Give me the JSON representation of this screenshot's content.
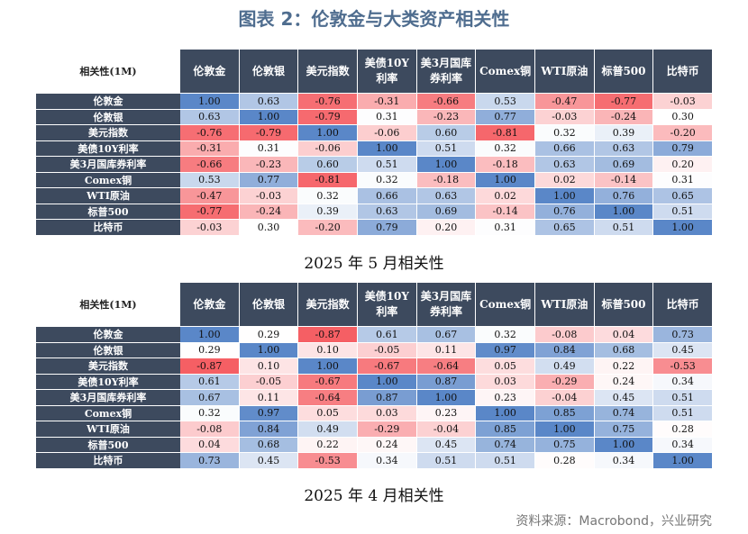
{
  "title": "图表 2：伦敦金与大类资产相关性",
  "tables": [
    {
      "corner": "相关性(1M)",
      "columns": [
        "伦敦金",
        "伦敦银",
        "美元指数",
        "美债10Y利率",
        "美3月国库券利率",
        "Comex铜",
        "WTI原油",
        "标普500",
        "比特币"
      ],
      "rows": [
        {
          "label": "伦敦金",
          "values": [
            "1.00",
            "0.63",
            "-0.76",
            "-0.31",
            "-0.66",
            "0.53",
            "-0.47",
            "-0.77",
            "-0.03"
          ]
        },
        {
          "label": "伦敦银",
          "values": [
            "0.63",
            "1.00",
            "-0.79",
            "0.31",
            "-0.23",
            "0.77",
            "-0.03",
            "-0.24",
            "0.30"
          ]
        },
        {
          "label": "美元指数",
          "values": [
            "-0.76",
            "-0.79",
            "1.00",
            "-0.06",
            "0.60",
            "-0.81",
            "0.32",
            "0.39",
            "-0.20"
          ]
        },
        {
          "label": "美债10Y利率",
          "values": [
            "-0.31",
            "0.31",
            "-0.06",
            "1.00",
            "0.51",
            "0.32",
            "0.66",
            "0.63",
            "0.79"
          ]
        },
        {
          "label": "美3月国库券利率",
          "values": [
            "-0.66",
            "-0.23",
            "0.60",
            "0.51",
            "1.00",
            "-0.18",
            "0.63",
            "0.69",
            "0.20"
          ]
        },
        {
          "label": "Comex铜",
          "values": [
            "0.53",
            "0.77",
            "-0.81",
            "0.32",
            "-0.18",
            "1.00",
            "0.02",
            "-0.14",
            "0.31"
          ]
        },
        {
          "label": "WTI原油",
          "values": [
            "-0.47",
            "-0.03",
            "0.32",
            "0.66",
            "0.63",
            "0.02",
            "1.00",
            "0.76",
            "0.65"
          ]
        },
        {
          "label": "标普500",
          "values": [
            "-0.77",
            "-0.24",
            "0.39",
            "0.63",
            "0.69",
            "-0.14",
            "0.76",
            "1.00",
            "0.51"
          ]
        },
        {
          "label": "比特币",
          "values": [
            "-0.03",
            "0.30",
            "-0.20",
            "0.79",
            "0.20",
            "0.31",
            "0.65",
            "0.51",
            "1.00"
          ]
        }
      ],
      "caption": "2025 年 5 月相关性"
    },
    {
      "corner": "相关性(1M)",
      "columns": [
        "伦敦金",
        "伦敦银",
        "美元指数",
        "美债10Y利率",
        "美3月国库券利率",
        "Comex铜",
        "WTI原油",
        "标普500",
        "比特币"
      ],
      "rows": [
        {
          "label": "伦敦金",
          "values": [
            "1.00",
            "0.29",
            "-0.87",
            "0.61",
            "0.67",
            "0.32",
            "-0.08",
            "0.04",
            "0.73"
          ]
        },
        {
          "label": "伦敦银",
          "values": [
            "0.29",
            "1.00",
            "0.10",
            "-0.05",
            "0.11",
            "0.97",
            "0.84",
            "0.68",
            "0.45"
          ]
        },
        {
          "label": "美元指数",
          "values": [
            "-0.87",
            "0.10",
            "1.00",
            "-0.67",
            "-0.64",
            "0.05",
            "0.49",
            "0.22",
            "-0.53"
          ]
        },
        {
          "label": "美债10Y利率",
          "values": [
            "0.61",
            "-0.05",
            "-0.67",
            "1.00",
            "0.87",
            "0.03",
            "-0.29",
            "0.24",
            "0.34"
          ]
        },
        {
          "label": "美3月国库券利率",
          "values": [
            "0.67",
            "0.11",
            "-0.64",
            "0.87",
            "1.00",
            "0.23",
            "-0.04",
            "0.45",
            "0.51"
          ]
        },
        {
          "label": "Comex铜",
          "values": [
            "0.32",
            "0.97",
            "0.05",
            "0.03",
            "0.23",
            "1.00",
            "0.85",
            "0.74",
            "0.51"
          ]
        },
        {
          "label": "WTI原油",
          "values": [
            "-0.08",
            "0.84",
            "0.49",
            "-0.29",
            "-0.04",
            "0.85",
            "1.00",
            "0.75",
            "0.28"
          ]
        },
        {
          "label": "标普500",
          "values": [
            "0.04",
            "0.68",
            "0.22",
            "0.24",
            "0.45",
            "0.74",
            "0.75",
            "1.00",
            "0.34"
          ]
        },
        {
          "label": "比特币",
          "values": [
            "0.73",
            "0.45",
            "-0.53",
            "0.34",
            "0.51",
            "0.51",
            "0.28",
            "0.34",
            "1.00"
          ]
        }
      ],
      "caption": "2025 年 4 月相关性"
    }
  ],
  "source": "资料来源：Macrobond，兴业研究"
}
